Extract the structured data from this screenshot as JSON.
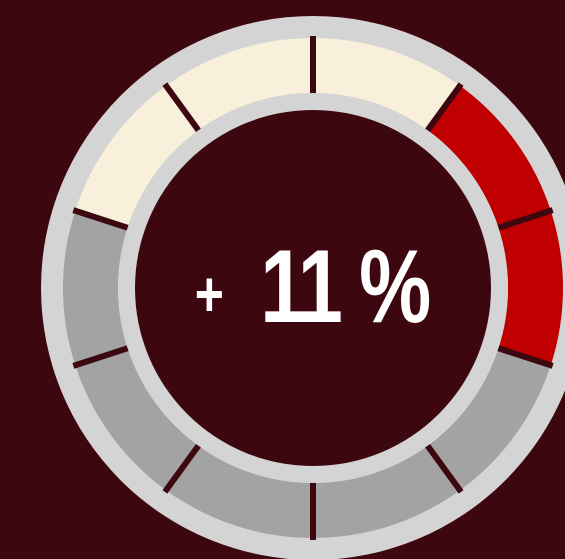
{
  "gauge": {
    "sign": "+",
    "value": "11 %"
  }
}
